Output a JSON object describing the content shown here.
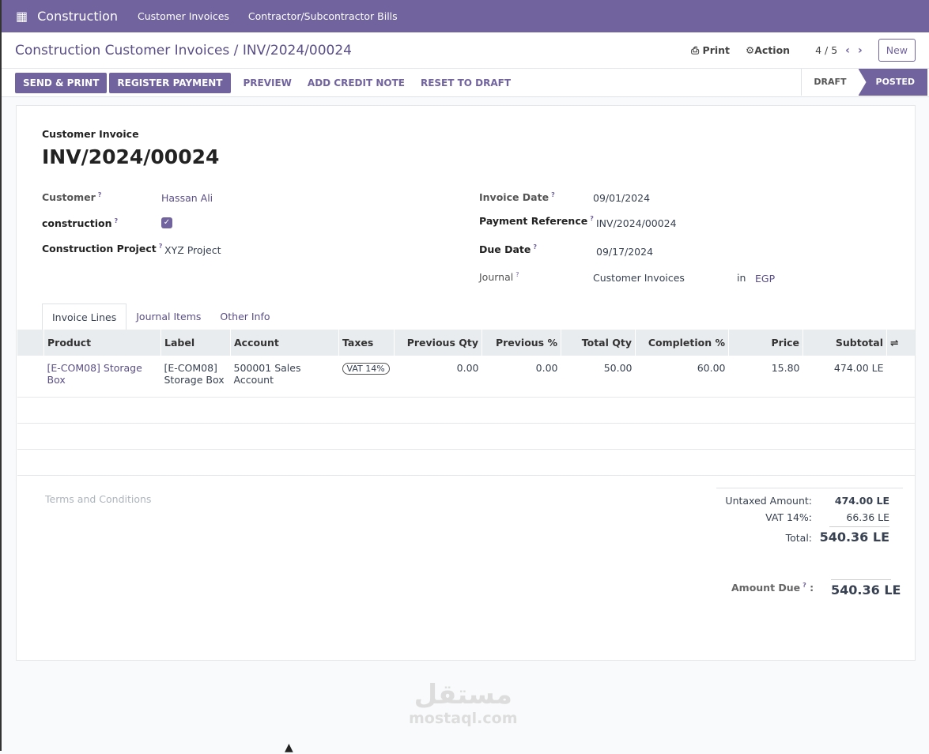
{
  "nav": {
    "app": "Construction",
    "items": [
      "Customer Invoices",
      "Contractor/Subcontractor Bills"
    ]
  },
  "breadcrumb": {
    "parent": "Construction Customer Invoices",
    "current": "INV/2024/00024"
  },
  "toolbar": {
    "print": "Print",
    "action": "Action",
    "pager": "4 / 5",
    "new": "New"
  },
  "actions": {
    "send_print": "SEND & PRINT",
    "register_payment": "REGISTER PAYMENT",
    "preview": "PREVIEW",
    "add_credit_note": "ADD CREDIT NOTE",
    "reset_to_draft": "RESET TO DRAFT"
  },
  "status": {
    "draft": "DRAFT",
    "posted": "POSTED",
    "current": "POSTED"
  },
  "form": {
    "type": "Customer Invoice",
    "number": "INV/2024/00024",
    "customer_label": "Customer",
    "customer": "Hassan Ali",
    "construction_label": "construction",
    "construction_checked": true,
    "project_label": "Construction Project",
    "project": "XYZ Project",
    "invoice_date_label": "Invoice Date",
    "invoice_date": "09/01/2024",
    "payment_ref_label": "Payment Reference",
    "payment_ref": "INV/2024/00024",
    "due_date_label": "Due Date",
    "due_date": "09/17/2024",
    "journal_label": "Journal",
    "journal": "Customer Invoices",
    "in": "in",
    "currency": "EGP",
    "help": "?"
  },
  "tabs": [
    "Invoice Lines",
    "Journal Items",
    "Other Info"
  ],
  "table": {
    "headers": [
      "Product",
      "Label",
      "Account",
      "Taxes",
      "Previous Qty",
      "Previous %",
      "Total Qty",
      "Completion %",
      "Price",
      "Subtotal"
    ],
    "rows": [
      {
        "product": "[E-COM08] Storage Box",
        "label": "[E-COM08] Storage Box",
        "account": "500001 Sales Account",
        "taxes": "VAT 14%",
        "prev_qty": "0.00",
        "prev_pct": "0.00",
        "total_qty": "50.00",
        "completion": "60.00",
        "price": "15.80",
        "subtotal": "474.00 LE"
      }
    ]
  },
  "terms_placeholder": "Terms and Conditions",
  "totals": {
    "untaxed_label": "Untaxed Amount:",
    "untaxed": "474.00 LE",
    "vat_label": "VAT 14%:",
    "vat": "66.36 LE",
    "total_label": "Total:",
    "total": "540.36 LE",
    "due_label": "Amount Due",
    "due": "540.36 LE"
  },
  "watermark": {
    "arabic": "مستقل",
    "latin": "mostaql.com"
  }
}
